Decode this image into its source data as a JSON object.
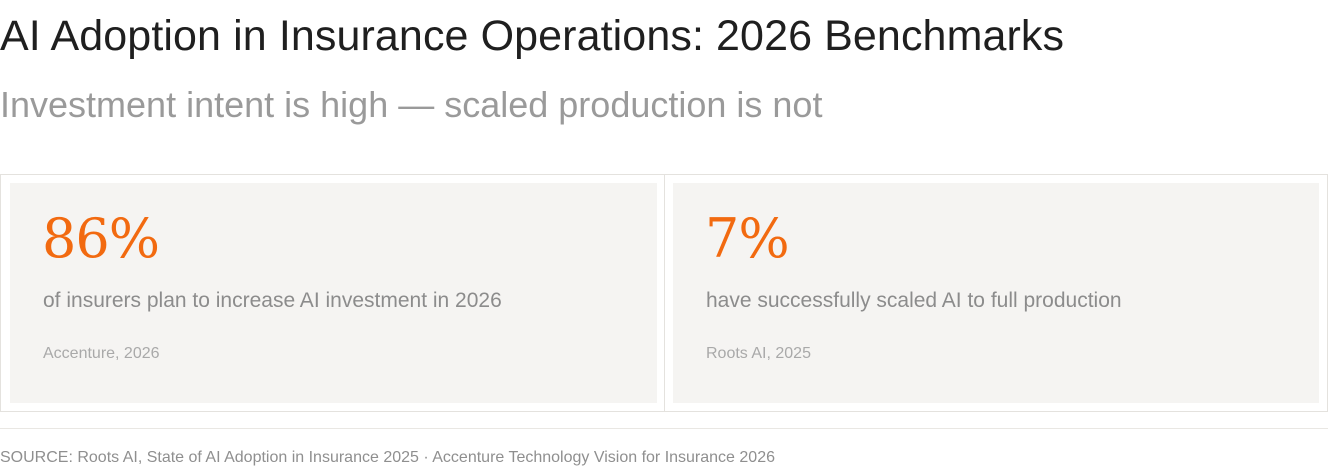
{
  "header": {
    "title": "AI Adoption in Insurance Operations: 2026 Benchmarks",
    "subtitle": "Investment intent is high — scaled production is not"
  },
  "stats": [
    {
      "value": "86%",
      "description": "of insurers plan to increase AI investment in 2026",
      "source": "Accenture, 2026"
    },
    {
      "value": "7%",
      "description": "have successfully scaled AI to full production",
      "source": "Roots AI, 2025"
    }
  ],
  "footer": {
    "source_note": "SOURCE: Roots AI, State of AI Adoption in Insurance 2025 · Accenture Technology Vision for Insurance 2026"
  },
  "colors": {
    "accent": "#f26a10",
    "card_background": "#f5f4f2",
    "title": "#1f1f1f",
    "muted_text": "#9a9a9a"
  }
}
